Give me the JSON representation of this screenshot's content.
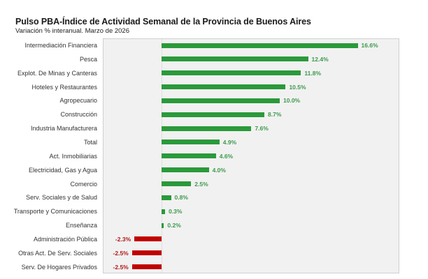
{
  "title": "Pulso PBA-Índice de Actividad Semanal de la Provincia de Buenos Aires",
  "subtitle": "Variación % interanual. Marzo de 2026",
  "colors": {
    "positive": "#2a9a3a",
    "negative": "#c00000",
    "plot_bg": "#f1f1f1"
  },
  "chart_data": {
    "type": "bar",
    "orientation": "horizontal",
    "title": "Pulso PBA-Índice de Actividad Semanal de la Provincia de Buenos Aires",
    "subtitle": "Variación % interanual. Marzo de 2026",
    "xlabel": "",
    "ylabel": "",
    "grid": false,
    "legend": null,
    "categories": [
      "Intermediación Financiera",
      "Pesca",
      "Explot. De Minas y Canteras",
      "Hoteles y Restaurantes",
      "Agropecuario",
      "Construcción",
      "Industria Manufacturera",
      "Total",
      "Act. Inmobiliarias",
      "Electricidad, Gas y Agua",
      "Comercio",
      "Serv. Sociales y de Salud",
      "Transporte y Comunicaciones",
      "Enseñanza",
      "Administración Pública",
      "Otras Act. De Serv. Sociales",
      "Serv. De Hogares Privados"
    ],
    "values": [
      16.6,
      12.4,
      11.8,
      10.5,
      10.0,
      8.7,
      7.6,
      4.9,
      4.6,
      4.0,
      2.5,
      0.8,
      0.3,
      0.2,
      -2.3,
      -2.5,
      -2.5
    ],
    "value_labels": [
      "16.6%",
      "12.4%",
      "11.8%",
      "10.5%",
      "10.0%",
      "8.7%",
      "7.6%",
      "4.9%",
      "4.6%",
      "4.0%",
      "2.5%",
      "0.8%",
      "0.3%",
      "0.2%",
      "-2.3%",
      "-2.5%",
      "-2.5%"
    ]
  }
}
